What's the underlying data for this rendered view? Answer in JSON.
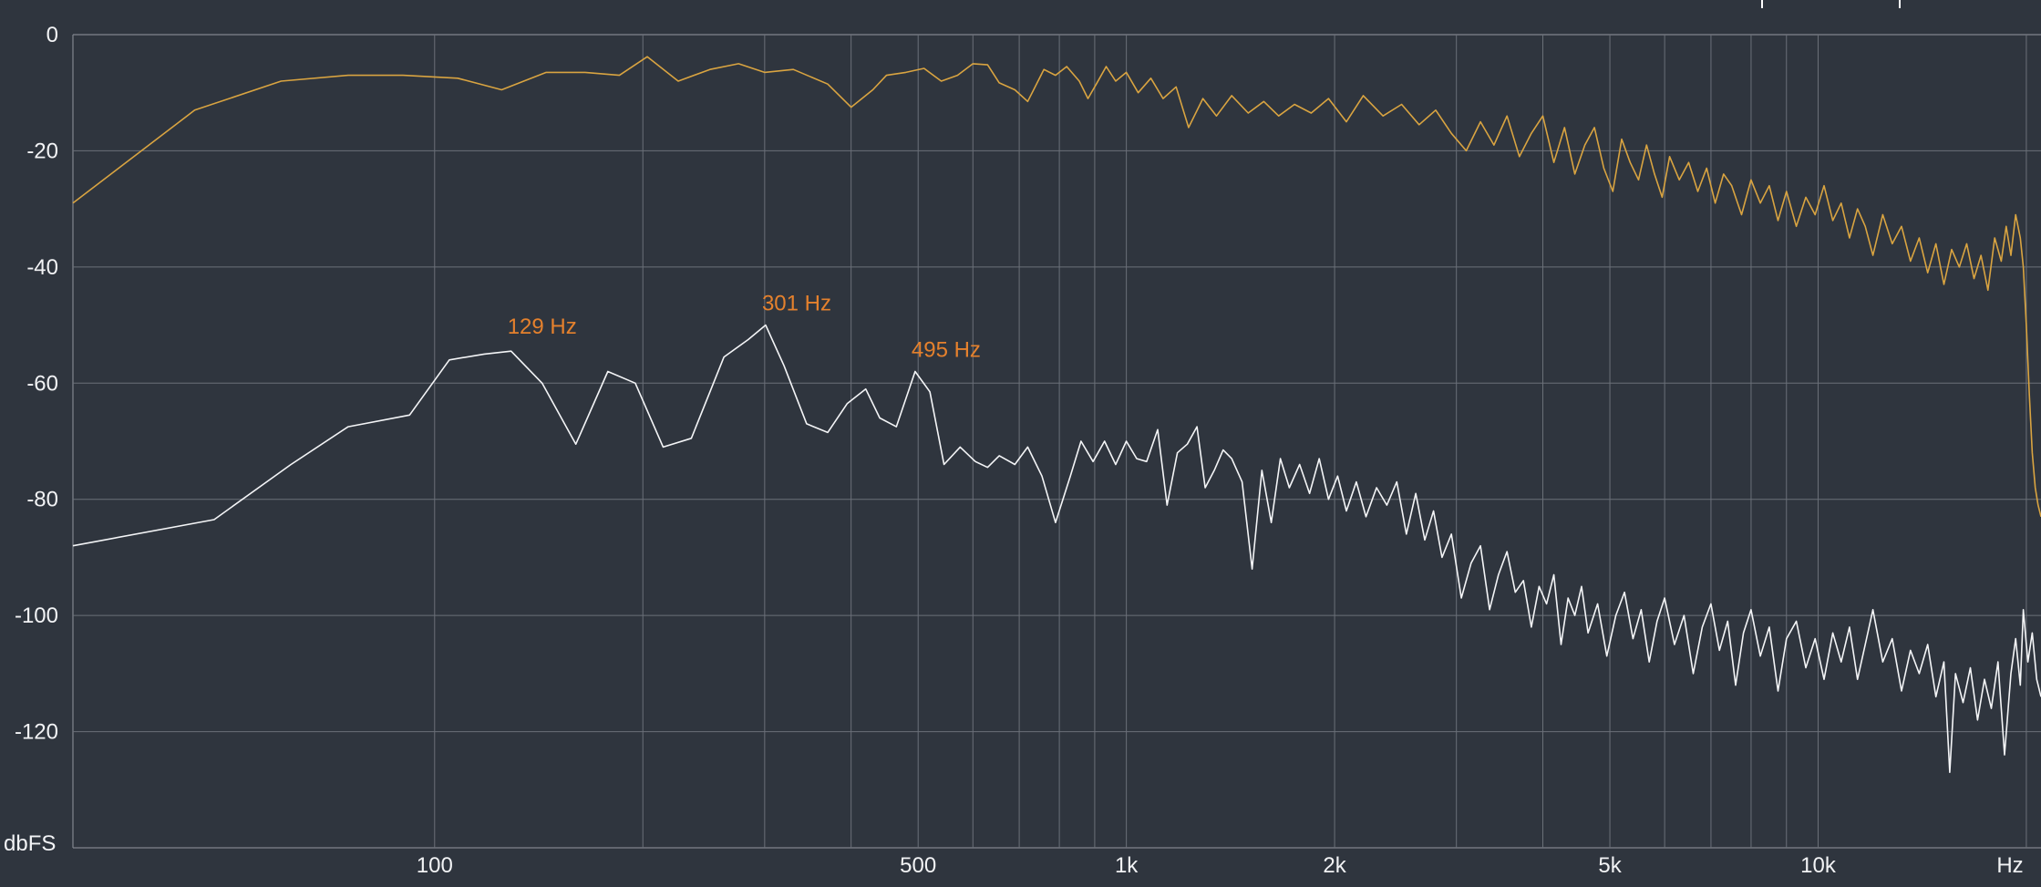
{
  "chart_data": {
    "type": "line",
    "x_scale": "log",
    "xlim": [
      30,
      21000
    ],
    "ylim": [
      -140,
      0
    ],
    "grid": true,
    "ylabel": "dbFS",
    "xunit": "Hz",
    "x_tick_labels": [
      {
        "value": 100,
        "label": "100"
      },
      {
        "value": 500,
        "label": "500"
      },
      {
        "value": 1000,
        "label": "1k"
      },
      {
        "value": 2000,
        "label": "2k"
      },
      {
        "value": 5000,
        "label": "5k"
      },
      {
        "value": 10000,
        "label": "10k"
      }
    ],
    "y_tick_labels": [
      {
        "value": 0,
        "label": "0"
      },
      {
        "value": -20,
        "label": "-20"
      },
      {
        "value": -40,
        "label": "-40"
      },
      {
        "value": -60,
        "label": "-60"
      },
      {
        "value": -80,
        "label": "-80"
      },
      {
        "value": -100,
        "label": "-100"
      },
      {
        "value": -120,
        "label": "-120"
      }
    ],
    "x_gridlines": [
      100,
      200,
      300,
      400,
      500,
      600,
      700,
      800,
      900,
      1000,
      2000,
      3000,
      4000,
      5000,
      6000,
      7000,
      8000,
      9000,
      10000,
      20000
    ],
    "peak_annotations": [
      {
        "freq": 129,
        "db": -54,
        "label": "129 Hz"
      },
      {
        "freq": 301,
        "db": -50,
        "label": "301 Hz"
      },
      {
        "freq": 495,
        "db": -58,
        "label": "495 Hz"
      }
    ],
    "series": [
      {
        "color": "#d9a441",
        "points": [
          [
            30,
            -29
          ],
          [
            45,
            -13
          ],
          [
            60,
            -8
          ],
          [
            75,
            -7
          ],
          [
            90,
            -7
          ],
          [
            108,
            -7.5
          ],
          [
            125,
            -9.5
          ],
          [
            145,
            -6.5
          ],
          [
            165,
            -6.5
          ],
          [
            185,
            -7
          ],
          [
            203,
            -3.8
          ],
          [
            225,
            -8
          ],
          [
            250,
            -6
          ],
          [
            275,
            -5
          ],
          [
            300,
            -6.5
          ],
          [
            330,
            -6
          ],
          [
            370,
            -8.5
          ],
          [
            400,
            -12.5
          ],
          [
            430,
            -9.5
          ],
          [
            450,
            -7
          ],
          [
            480,
            -6.5
          ],
          [
            510,
            -5.8
          ],
          [
            540,
            -8
          ],
          [
            570,
            -7
          ],
          [
            600,
            -5
          ],
          [
            630,
            -5.2
          ],
          [
            655,
            -8.3
          ],
          [
            690,
            -9.5
          ],
          [
            720,
            -11.5
          ],
          [
            760,
            -6
          ],
          [
            790,
            -7
          ],
          [
            820,
            -5.5
          ],
          [
            855,
            -8
          ],
          [
            880,
            -11
          ],
          [
            905,
            -8.5
          ],
          [
            935,
            -5.5
          ],
          [
            965,
            -8
          ],
          [
            1000,
            -6.5
          ],
          [
            1040,
            -10
          ],
          [
            1085,
            -7.5
          ],
          [
            1130,
            -11
          ],
          [
            1180,
            -9
          ],
          [
            1230,
            -16
          ],
          [
            1290,
            -11
          ],
          [
            1350,
            -14
          ],
          [
            1420,
            -10.5
          ],
          [
            1500,
            -13.5
          ],
          [
            1580,
            -11.5
          ],
          [
            1660,
            -14
          ],
          [
            1750,
            -12
          ],
          [
            1850,
            -13.5
          ],
          [
            1960,
            -11
          ],
          [
            2080,
            -15
          ],
          [
            2200,
            -10.5
          ],
          [
            2350,
            -14
          ],
          [
            2500,
            -12
          ],
          [
            2650,
            -15.5
          ],
          [
            2800,
            -13
          ],
          [
            2950,
            -17
          ],
          [
            3100,
            -20
          ],
          [
            3250,
            -15
          ],
          [
            3400,
            -19
          ],
          [
            3550,
            -14
          ],
          [
            3700,
            -21
          ],
          [
            3850,
            -17
          ],
          [
            4000,
            -14
          ],
          [
            4150,
            -22
          ],
          [
            4300,
            -16
          ],
          [
            4450,
            -24
          ],
          [
            4600,
            -19
          ],
          [
            4750,
            -16
          ],
          [
            4900,
            -23
          ],
          [
            5050,
            -27
          ],
          [
            5200,
            -18
          ],
          [
            5350,
            -22
          ],
          [
            5500,
            -25
          ],
          [
            5650,
            -19
          ],
          [
            5800,
            -24
          ],
          [
            5950,
            -28
          ],
          [
            6100,
            -21
          ],
          [
            6300,
            -25
          ],
          [
            6500,
            -22
          ],
          [
            6700,
            -27
          ],
          [
            6900,
            -23
          ],
          [
            7100,
            -29
          ],
          [
            7300,
            -24
          ],
          [
            7500,
            -26
          ],
          [
            7750,
            -31
          ],
          [
            8000,
            -25
          ],
          [
            8250,
            -29
          ],
          [
            8500,
            -26
          ],
          [
            8750,
            -32
          ],
          [
            9000,
            -27
          ],
          [
            9300,
            -33
          ],
          [
            9600,
            -28
          ],
          [
            9900,
            -31
          ],
          [
            10200,
            -26
          ],
          [
            10500,
            -32
          ],
          [
            10800,
            -29
          ],
          [
            11100,
            -35
          ],
          [
            11400,
            -30
          ],
          [
            11700,
            -33
          ],
          [
            12000,
            -38
          ],
          [
            12400,
            -31
          ],
          [
            12800,
            -36
          ],
          [
            13200,
            -33
          ],
          [
            13600,
            -39
          ],
          [
            14000,
            -35
          ],
          [
            14400,
            -41
          ],
          [
            14800,
            -36
          ],
          [
            15200,
            -43
          ],
          [
            15600,
            -37
          ],
          [
            16000,
            -40
          ],
          [
            16400,
            -36
          ],
          [
            16800,
            -42
          ],
          [
            17200,
            -38
          ],
          [
            17600,
            -44
          ],
          [
            18000,
            -35
          ],
          [
            18400,
            -39
          ],
          [
            18700,
            -33
          ],
          [
            19000,
            -38
          ],
          [
            19300,
            -31
          ],
          [
            19600,
            -35
          ],
          [
            19800,
            -40
          ],
          [
            20000,
            -50
          ],
          [
            20200,
            -62
          ],
          [
            20400,
            -72
          ],
          [
            20600,
            -78
          ],
          [
            20800,
            -81
          ],
          [
            21000,
            -83
          ]
        ]
      },
      {
        "color": "#f4f5f7",
        "points": [
          [
            30,
            -88
          ],
          [
            48,
            -83.5
          ],
          [
            62,
            -74
          ],
          [
            75,
            -67.5
          ],
          [
            92,
            -65.5
          ],
          [
            105,
            -56
          ],
          [
            118,
            -55
          ],
          [
            129,
            -54.5
          ],
          [
            143,
            -60
          ],
          [
            160,
            -70.5
          ],
          [
            178,
            -58
          ],
          [
            195,
            -60
          ],
          [
            214,
            -71
          ],
          [
            235,
            -69.5
          ],
          [
            262,
            -55.5
          ],
          [
            284,
            -52.5
          ],
          [
            301,
            -50
          ],
          [
            320,
            -57
          ],
          [
            345,
            -67
          ],
          [
            370,
            -68.5
          ],
          [
            395,
            -63.5
          ],
          [
            420,
            -61
          ],
          [
            440,
            -66
          ],
          [
            465,
            -67.5
          ],
          [
            495,
            -58
          ],
          [
            520,
            -61.5
          ],
          [
            545,
            -74
          ],
          [
            575,
            -71
          ],
          [
            605,
            -73.5
          ],
          [
            630,
            -74.5
          ],
          [
            655,
            -72.5
          ],
          [
            690,
            -74
          ],
          [
            720,
            -71
          ],
          [
            755,
            -76
          ],
          [
            790,
            -84
          ],
          [
            830,
            -76
          ],
          [
            860,
            -70
          ],
          [
            895,
            -73.5
          ],
          [
            930,
            -70
          ],
          [
            965,
            -74
          ],
          [
            1000,
            -70
          ],
          [
            1035,
            -73
          ],
          [
            1070,
            -73.5
          ],
          [
            1110,
            -68
          ],
          [
            1145,
            -81
          ],
          [
            1185,
            -72
          ],
          [
            1225,
            -70.5
          ],
          [
            1265,
            -67.5
          ],
          [
            1300,
            -78
          ],
          [
            1340,
            -75
          ],
          [
            1380,
            -71.5
          ],
          [
            1420,
            -73
          ],
          [
            1470,
            -77
          ],
          [
            1520,
            -92
          ],
          [
            1570,
            -75
          ],
          [
            1620,
            -84
          ],
          [
            1670,
            -73
          ],
          [
            1720,
            -78
          ],
          [
            1780,
            -74
          ],
          [
            1840,
            -79
          ],
          [
            1900,
            -73
          ],
          [
            1960,
            -80
          ],
          [
            2020,
            -76
          ],
          [
            2080,
            -82
          ],
          [
            2150,
            -77
          ],
          [
            2220,
            -83
          ],
          [
            2300,
            -78
          ],
          [
            2380,
            -81
          ],
          [
            2460,
            -77
          ],
          [
            2540,
            -86
          ],
          [
            2620,
            -79
          ],
          [
            2700,
            -87
          ],
          [
            2780,
            -82
          ],
          [
            2860,
            -90
          ],
          [
            2950,
            -86
          ],
          [
            3050,
            -97
          ],
          [
            3150,
            -91
          ],
          [
            3250,
            -88
          ],
          [
            3350,
            -99
          ],
          [
            3450,
            -93
          ],
          [
            3550,
            -89
          ],
          [
            3650,
            -96
          ],
          [
            3750,
            -94
          ],
          [
            3850,
            -102
          ],
          [
            3950,
            -95
          ],
          [
            4050,
            -98
          ],
          [
            4150,
            -93
          ],
          [
            4250,
            -105
          ],
          [
            4350,
            -97
          ],
          [
            4450,
            -100
          ],
          [
            4550,
            -95
          ],
          [
            4650,
            -103
          ],
          [
            4800,
            -98
          ],
          [
            4950,
            -107
          ],
          [
            5100,
            -100
          ],
          [
            5250,
            -96
          ],
          [
            5400,
            -104
          ],
          [
            5550,
            -99
          ],
          [
            5700,
            -108
          ],
          [
            5850,
            -101
          ],
          [
            6000,
            -97
          ],
          [
            6200,
            -105
          ],
          [
            6400,
            -100
          ],
          [
            6600,
            -110
          ],
          [
            6800,
            -102
          ],
          [
            7000,
            -98
          ],
          [
            7200,
            -106
          ],
          [
            7400,
            -101
          ],
          [
            7600,
            -112
          ],
          [
            7800,
            -103
          ],
          [
            8000,
            -99
          ],
          [
            8250,
            -107
          ],
          [
            8500,
            -102
          ],
          [
            8750,
            -113
          ],
          [
            9000,
            -104
          ],
          [
            9300,
            -101
          ],
          [
            9600,
            -109
          ],
          [
            9900,
            -104
          ],
          [
            10200,
            -111
          ],
          [
            10500,
            -103
          ],
          [
            10800,
            -108
          ],
          [
            11100,
            -102
          ],
          [
            11400,
            -111
          ],
          [
            11700,
            -105
          ],
          [
            12000,
            -99
          ],
          [
            12400,
            -108
          ],
          [
            12800,
            -104
          ],
          [
            13200,
            -113
          ],
          [
            13600,
            -106
          ],
          [
            14000,
            -110
          ],
          [
            14400,
            -105
          ],
          [
            14800,
            -114
          ],
          [
            15200,
            -108
          ],
          [
            15500,
            -127
          ],
          [
            15800,
            -110
          ],
          [
            16200,
            -115
          ],
          [
            16600,
            -109
          ],
          [
            17000,
            -118
          ],
          [
            17400,
            -111
          ],
          [
            17800,
            -116
          ],
          [
            18200,
            -108
          ],
          [
            18600,
            -124
          ],
          [
            19000,
            -110
          ],
          [
            19300,
            -104
          ],
          [
            19600,
            -112
          ],
          [
            19800,
            -99
          ],
          [
            20100,
            -108
          ],
          [
            20400,
            -103
          ],
          [
            20700,
            -111
          ],
          [
            21000,
            -114
          ]
        ]
      }
    ]
  }
}
